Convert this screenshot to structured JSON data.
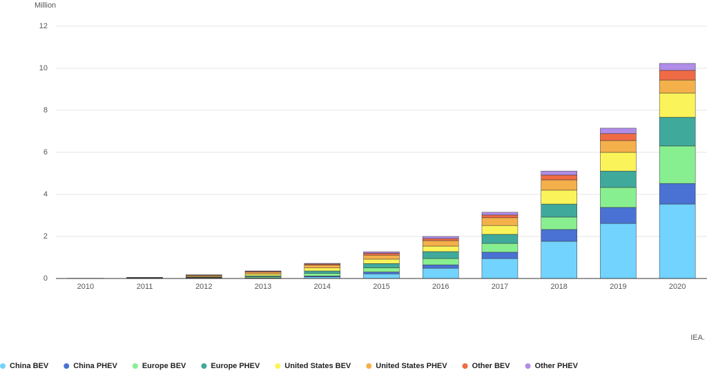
{
  "chart_data": {
    "type": "stacked_bar",
    "y_label": "Million",
    "source": "IEA.",
    "categories": [
      "2010",
      "2011",
      "2012",
      "2013",
      "2014",
      "2015",
      "2016",
      "2017",
      "2018",
      "2019",
      "2020"
    ],
    "series": [
      {
        "name": "China BEV",
        "color": "#72d3fe",
        "values": [
          0.005,
          0.01,
          0.02,
          0.02,
          0.08,
          0.22,
          0.49,
          0.95,
          1.77,
          2.62,
          3.54
        ]
      },
      {
        "name": "China PHEV",
        "color": "#4a72d4",
        "values": [
          0,
          0,
          0.005,
          0.01,
          0.04,
          0.09,
          0.16,
          0.3,
          0.56,
          0.76,
          0.98
        ]
      },
      {
        "name": "Europe BEV",
        "color": "#88ef90",
        "values": [
          0.003,
          0.01,
          0.02,
          0.05,
          0.12,
          0.2,
          0.3,
          0.42,
          0.59,
          0.95,
          1.78
        ]
      },
      {
        "name": "Europe PHEV",
        "color": "#3fa99c",
        "values": [
          0,
          0.002,
          0.01,
          0.05,
          0.12,
          0.2,
          0.33,
          0.43,
          0.62,
          0.78,
          1.37
        ]
      },
      {
        "name": "United States BEV",
        "color": "#faf45a",
        "values": [
          0.003,
          0.015,
          0.03,
          0.08,
          0.14,
          0.21,
          0.26,
          0.42,
          0.66,
          0.89,
          1.15
        ]
      },
      {
        "name": "United States PHEV",
        "color": "#f4b04b",
        "values": [
          0,
          0.01,
          0.05,
          0.09,
          0.14,
          0.19,
          0.26,
          0.37,
          0.49,
          0.56,
          0.62
        ]
      },
      {
        "name": "Other BEV",
        "color": "#ef6b45",
        "values": [
          0.001,
          0.005,
          0.03,
          0.04,
          0.05,
          0.09,
          0.1,
          0.13,
          0.23,
          0.33,
          0.46
        ]
      },
      {
        "name": "Other PHEV",
        "color": "#b08de8",
        "values": [
          0,
          0,
          0.01,
          0.02,
          0.03,
          0.07,
          0.1,
          0.13,
          0.19,
          0.26,
          0.33
        ]
      }
    ],
    "ylim": [
      0,
      12
    ],
    "yticks": [
      0,
      2,
      4,
      6,
      8,
      10,
      12
    ],
    "grid": true
  }
}
